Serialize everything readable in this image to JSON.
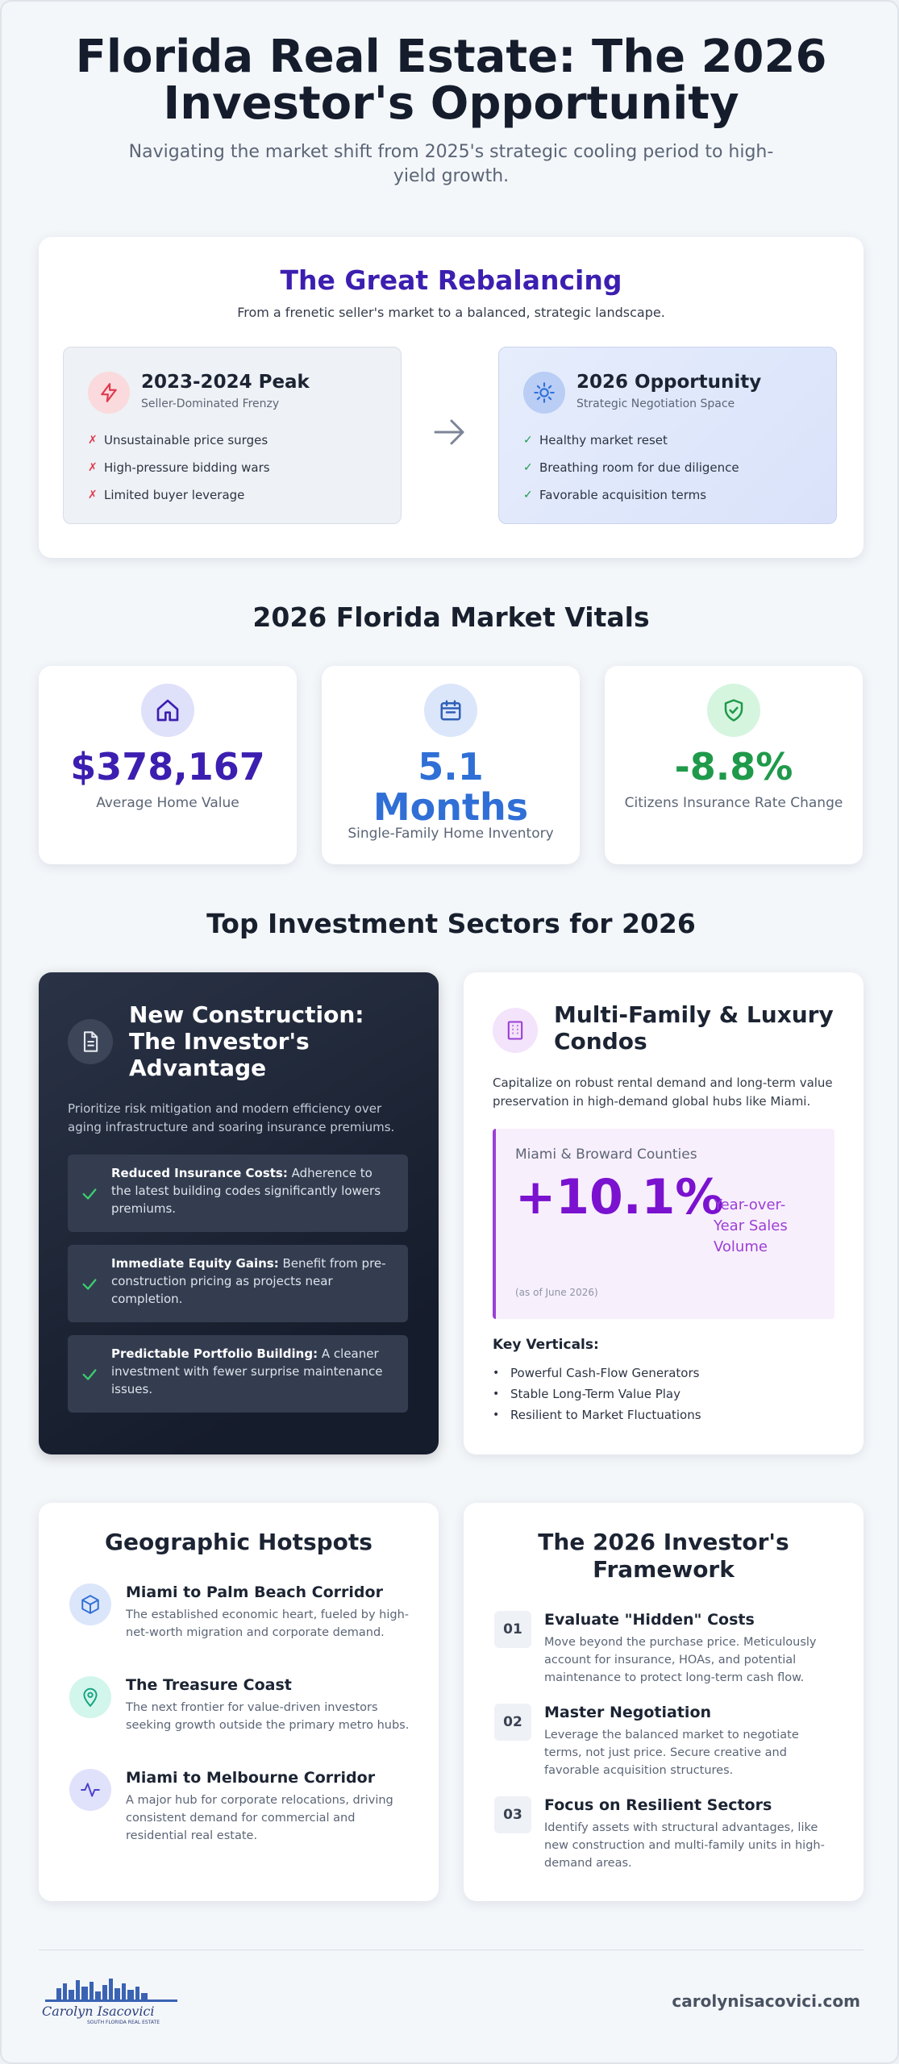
{
  "hero": {
    "title": "Florida Real Estate: The 2026 Investor's Opportunity",
    "subtitle": "Navigating the market shift from 2025's strategic cooling period to high-yield growth."
  },
  "rebalancing": {
    "title": "The Great Rebalancing",
    "subtitle": "From a frenetic seller's market to a balanced, strategic landscape.",
    "past": {
      "icon": "lightning-icon",
      "title": "2023-2024 Peak",
      "subtitle": "Seller-Dominated Frenzy",
      "items": [
        "Unsustainable price surges",
        "High-pressure bidding wars",
        "Limited buyer leverage"
      ]
    },
    "future": {
      "icon": "sparkle-badge-icon",
      "title": "2026 Opportunity",
      "subtitle": "Strategic Negotiation Space",
      "items": [
        "Healthy market reset",
        "Breathing room for due diligence",
        "Favorable acquisition terms"
      ]
    },
    "colors": {
      "past_accent": "#e03a4e",
      "future_accent": "#2f6fd6"
    }
  },
  "vitals": {
    "title": "2026 Florida Market Vitals",
    "items": [
      {
        "icon": "home-icon",
        "value": "$378,167",
        "label": "Average Home Value",
        "color": "#3c1fb0"
      },
      {
        "icon": "calendar-icon",
        "value": "5.1 Months",
        "label": "Single-Family Home Inventory",
        "color": "#2f6fd6"
      },
      {
        "icon": "shield-check-icon",
        "value": "-8.8%",
        "label": "Citizens Insurance Rate Change",
        "color": "#1f9a4a"
      }
    ]
  },
  "sectors": {
    "title": "Top Investment Sectors for 2026",
    "new_construction": {
      "icon": "document-icon",
      "title": "New Construction: The Investor's Advantage",
      "description": "Prioritize risk mitigation and modern efficiency over aging infrastructure and soaring insurance premiums.",
      "items": [
        {
          "bold": "Reduced Insurance Costs:",
          "text": " Adherence to the latest building codes significantly lowers premiums."
        },
        {
          "bold": "Immediate Equity Gains:",
          "text": " Benefit from pre-construction pricing as projects near completion."
        },
        {
          "bold": "Predictable Portfolio Building:",
          "text": " A cleaner investment with fewer surprise maintenance issues."
        }
      ]
    },
    "multi_family": {
      "icon": "building-icon",
      "title": "Multi-Family & Luxury Condos",
      "description": "Capitalize on robust rental demand and long-term value preservation in high-demand global hubs like Miami.",
      "stat_label": "Miami & Broward Counties",
      "stat_value": "+10.1%",
      "stat_unit": "Year-over-Year Sales Volume",
      "stat_note": "(as of June 2026)",
      "verticals_title": "Key Verticals:",
      "verticals": [
        "Powerful Cash-Flow Generators",
        "Stable Long-Term Value Play",
        "Resilient to Market Fluctuations"
      ]
    }
  },
  "geo": {
    "title": "Geographic Hotspots",
    "items": [
      {
        "icon": "cube-icon",
        "title": "Miami to Palm Beach Corridor",
        "text": "The established economic heart, fueled by high-net-worth migration and corporate demand."
      },
      {
        "icon": "map-pin-icon",
        "title": "The Treasure Coast",
        "text": "The next frontier for value-driven investors seeking growth outside the primary metro hubs."
      },
      {
        "icon": "pulse-icon",
        "title": "Miami to Melbourne Corridor",
        "text": "A major hub for corporate relocations, driving consistent demand for commercial and residential real estate."
      }
    ]
  },
  "framework": {
    "title": "The 2026 Investor's Framework",
    "items": [
      {
        "num": "01",
        "title": "Evaluate \"Hidden\" Costs",
        "text": "Move beyond the purchase price. Meticulously account for insurance, HOAs, and potential maintenance to protect long-term cash flow."
      },
      {
        "num": "02",
        "title": "Master Negotiation",
        "text": "Leverage the balanced market to negotiate terms, not just price. Secure creative and favorable acquisition structures."
      },
      {
        "num": "03",
        "title": "Focus on Resilient Sectors",
        "text": "Identify assets with structural advantages, like new construction and multi-family units in high-demand areas."
      }
    ]
  },
  "footer": {
    "logo_name": "Carolyn Isacovici",
    "logo_tag": "SOUTH FLORIDA REAL ESTATE",
    "website": "carolynisacovici.com"
  }
}
